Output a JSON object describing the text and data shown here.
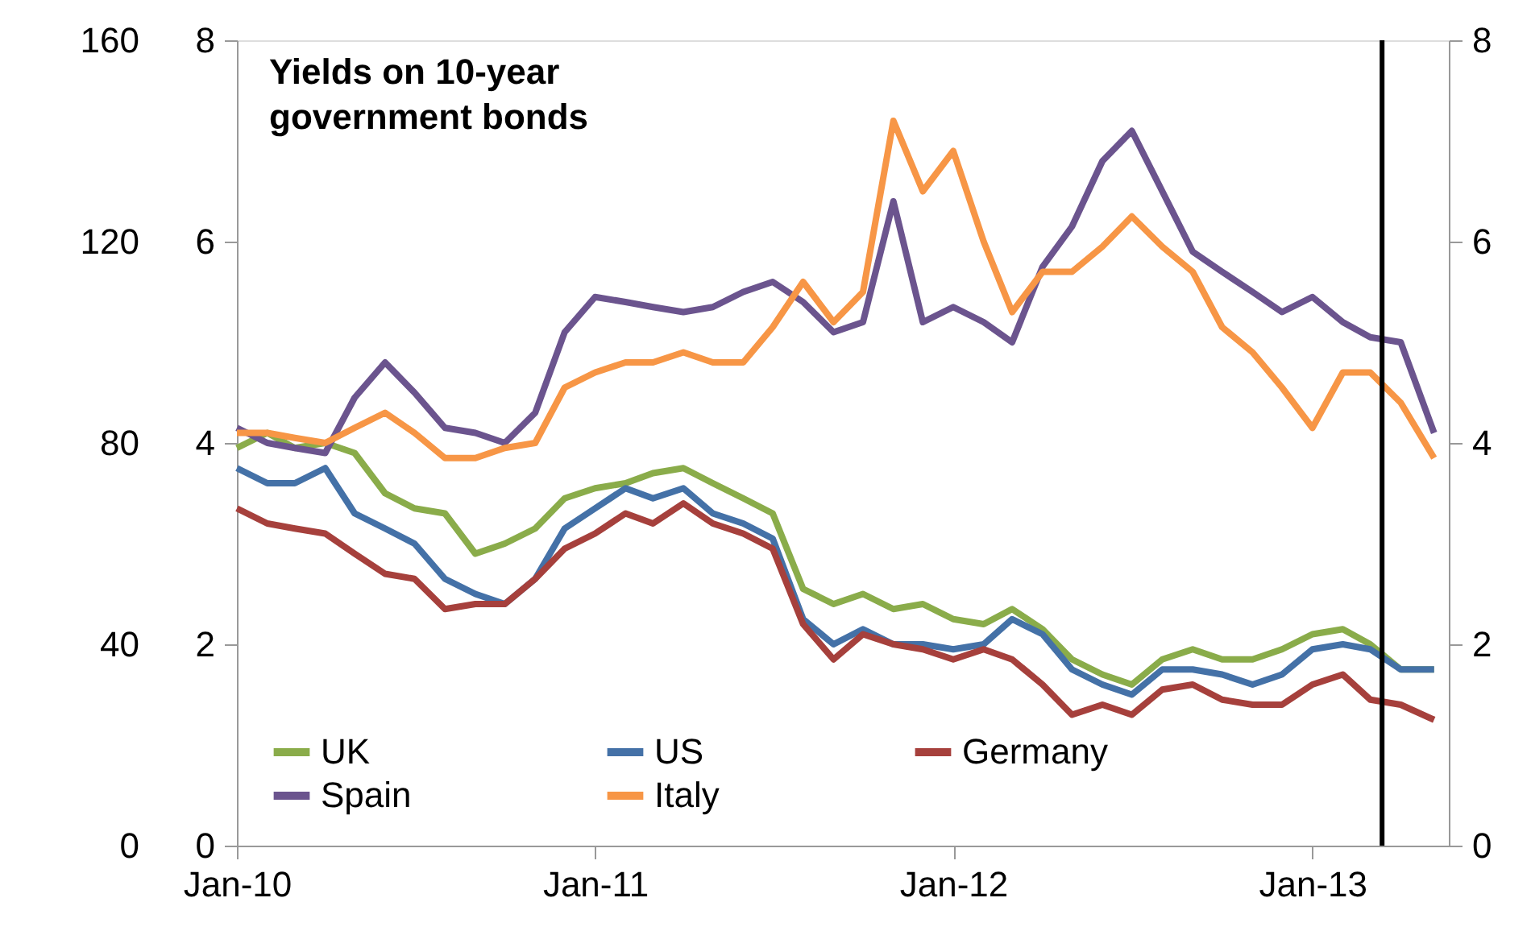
{
  "chart_data": {
    "type": "line",
    "title": "Yields on 10-year government bonds",
    "x": [
      "2010-01-01",
      "2010-02-01",
      "2010-03-01",
      "2010-04-01",
      "2010-05-01",
      "2010-06-01",
      "2010-07-01",
      "2010-08-01",
      "2010-09-01",
      "2010-10-01",
      "2010-11-01",
      "2010-12-01",
      "2011-01-01",
      "2011-02-01",
      "2011-03-01",
      "2011-04-01",
      "2011-05-01",
      "2011-06-01",
      "2011-07-01",
      "2011-08-01",
      "2011-09-01",
      "2011-10-01",
      "2011-11-01",
      "2011-12-01",
      "2012-01-01",
      "2012-02-01",
      "2012-03-01",
      "2012-04-01",
      "2012-05-01",
      "2012-06-01",
      "2012-07-01",
      "2012-08-01",
      "2012-09-01",
      "2012-10-01",
      "2012-11-01",
      "2012-12-01",
      "2013-01-01",
      "2013-02-01",
      "2013-03-01",
      "2013-04-01",
      "2013-05-05"
    ],
    "series": [
      {
        "name": "UK",
        "color": "#8aac4a",
        "values": [
          3.95,
          4.1,
          3.95,
          4.0,
          3.9,
          3.5,
          3.35,
          3.3,
          2.9,
          3.0,
          3.15,
          3.45,
          3.55,
          3.6,
          3.7,
          3.75,
          3.6,
          3.45,
          3.3,
          2.55,
          2.4,
          2.5,
          2.35,
          2.4,
          2.25,
          2.2,
          2.35,
          2.15,
          1.85,
          1.7,
          1.6,
          1.85,
          1.95,
          1.85,
          1.85,
          1.95,
          2.1,
          2.15,
          2.0,
          1.75,
          1.75
        ]
      },
      {
        "name": "US",
        "color": "#4471a7",
        "values": [
          3.75,
          3.6,
          3.6,
          3.75,
          3.3,
          3.15,
          3.0,
          2.65,
          2.5,
          2.4,
          2.65,
          3.15,
          3.35,
          3.55,
          3.45,
          3.55,
          3.3,
          3.2,
          3.05,
          2.25,
          2.0,
          2.15,
          2.0,
          2.0,
          1.95,
          2.0,
          2.25,
          2.1,
          1.75,
          1.6,
          1.5,
          1.75,
          1.75,
          1.7,
          1.6,
          1.7,
          1.95,
          2.0,
          1.95,
          1.75,
          1.75
        ]
      },
      {
        "name": "Germany",
        "color": "#a6403c",
        "values": [
          3.35,
          3.2,
          3.15,
          3.1,
          2.9,
          2.7,
          2.65,
          2.35,
          2.4,
          2.4,
          2.65,
          2.95,
          3.1,
          3.3,
          3.2,
          3.4,
          3.2,
          3.1,
          2.95,
          2.2,
          1.85,
          2.1,
          2.0,
          1.95,
          1.85,
          1.95,
          1.85,
          1.6,
          1.3,
          1.4,
          1.3,
          1.55,
          1.6,
          1.45,
          1.4,
          1.4,
          1.6,
          1.7,
          1.45,
          1.4,
          1.25
        ]
      },
      {
        "name": "Spain",
        "color": "#6b548e",
        "values": [
          4.15,
          4.0,
          3.95,
          3.9,
          4.45,
          4.8,
          4.5,
          4.15,
          4.1,
          4.0,
          4.3,
          5.1,
          5.45,
          5.4,
          5.35,
          5.3,
          5.35,
          5.5,
          5.6,
          5.4,
          5.1,
          5.2,
          6.4,
          5.2,
          5.35,
          5.2,
          5.0,
          5.75,
          6.15,
          6.8,
          7.1,
          6.5,
          5.9,
          5.7,
          5.5,
          5.3,
          5.45,
          5.2,
          5.05,
          5.0,
          4.1
        ]
      },
      {
        "name": "Italy",
        "color": "#f79646",
        "values": [
          4.1,
          4.1,
          4.05,
          4.0,
          4.15,
          4.3,
          4.1,
          3.85,
          3.85,
          3.95,
          4.0,
          4.55,
          4.7,
          4.8,
          4.8,
          4.9,
          4.8,
          4.8,
          5.15,
          5.6,
          5.2,
          5.5,
          7.2,
          6.5,
          6.9,
          6.0,
          5.3,
          5.7,
          5.7,
          5.95,
          6.25,
          5.95,
          5.7,
          5.15,
          4.9,
          4.55,
          4.15,
          4.7,
          4.7,
          4.4,
          3.85
        ]
      }
    ],
    "xlim": [
      "2010-01-01",
      "2013-05-20"
    ],
    "xticks": [
      {
        "value": "2010-01-01",
        "label": "Jan-10"
      },
      {
        "value": "2011-01-01",
        "label": "Jan-11"
      },
      {
        "value": "2012-01-01",
        "label": "Jan-12"
      },
      {
        "value": "2013-01-01",
        "label": "Jan-13"
      }
    ],
    "ylim": [
      0,
      8
    ],
    "yticks": [
      0,
      2,
      4,
      6,
      8
    ],
    "y2lim": [
      0,
      8
    ],
    "y2ticks": [
      0,
      2,
      4,
      6,
      8
    ],
    "y3lim": [
      0,
      160
    ],
    "y3ticks": [
      0,
      40,
      80,
      120,
      160
    ],
    "ref_lines": [
      {
        "axis": "x",
        "value": "2013-03-13",
        "color": "#000000"
      }
    ],
    "grid": false,
    "legend": "bottom left",
    "marker": "none",
    "line_style": "solid"
  }
}
